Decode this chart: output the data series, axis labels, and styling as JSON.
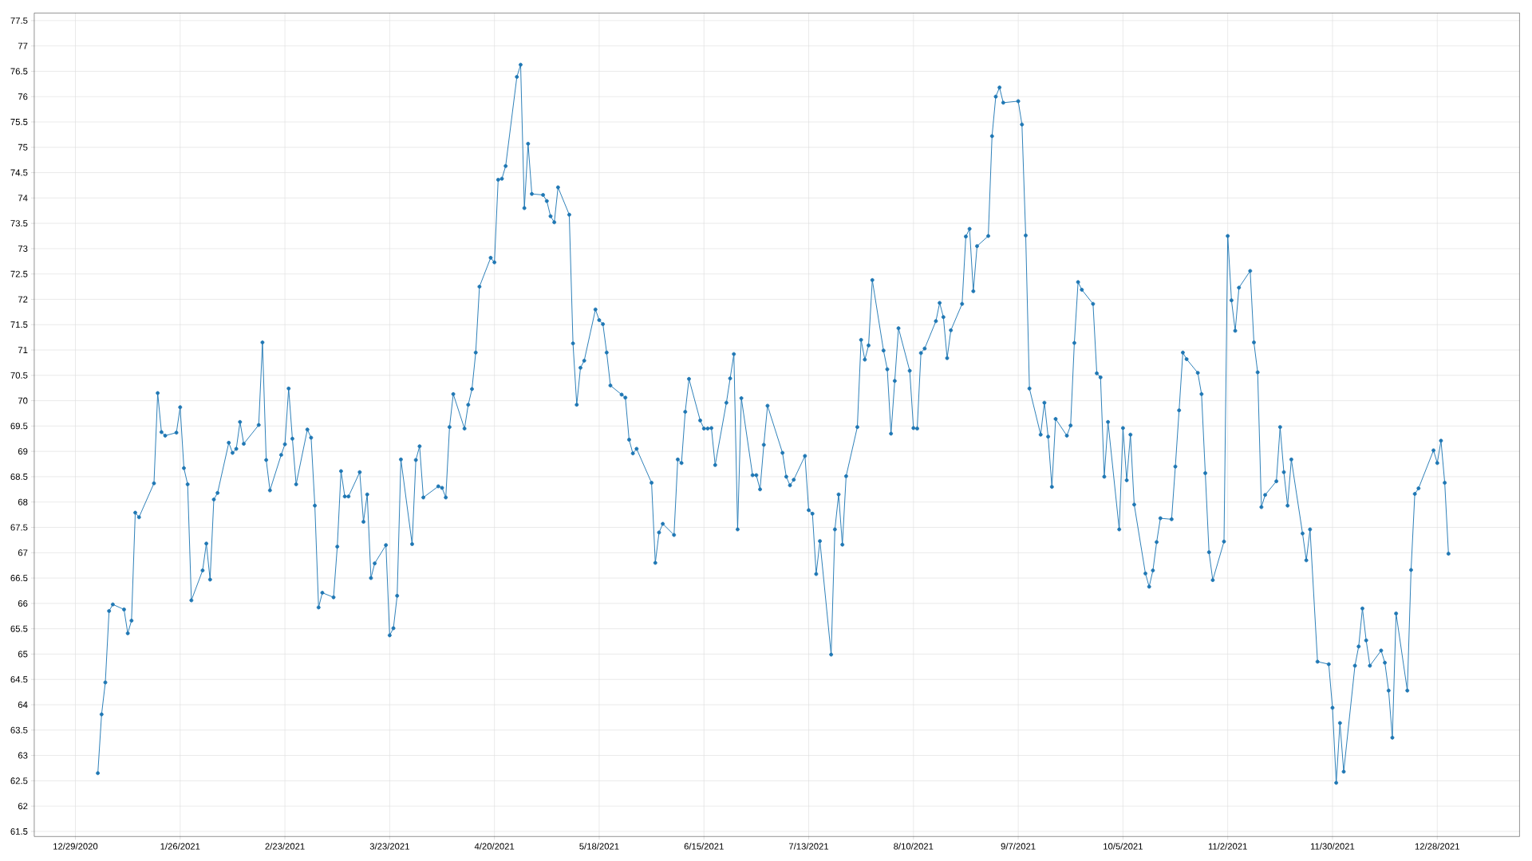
{
  "chart_data": {
    "type": "line",
    "color": "#1f77b4",
    "marker": "circle",
    "line_style": "solid",
    "grid": true,
    "legend": false,
    "xlim": [
      "2020-12-18",
      "2022-01-19"
    ],
    "ylim": [
      61.4,
      77.65
    ],
    "xticks": [
      {
        "value": "2020-12-29",
        "label": "12/29/2020"
      },
      {
        "value": "2021-01-26",
        "label": "1/26/2021"
      },
      {
        "value": "2021-02-23",
        "label": "2/23/2021"
      },
      {
        "value": "2021-03-23",
        "label": "3/23/2021"
      },
      {
        "value": "2021-04-20",
        "label": "4/20/2021"
      },
      {
        "value": "2021-05-18",
        "label": "5/18/2021"
      },
      {
        "value": "2021-06-15",
        "label": "6/15/2021"
      },
      {
        "value": "2021-07-13",
        "label": "7/13/2021"
      },
      {
        "value": "2021-08-10",
        "label": "8/10/2021"
      },
      {
        "value": "2021-09-07",
        "label": "9/7/2021"
      },
      {
        "value": "2021-10-05",
        "label": "10/5/2021"
      },
      {
        "value": "2021-11-02",
        "label": "11/2/2021"
      },
      {
        "value": "2021-11-30",
        "label": "11/30/2021"
      },
      {
        "value": "2021-12-28",
        "label": "12/28/2021"
      }
    ],
    "yticks": [
      61.5,
      62,
      62.5,
      63,
      63.5,
      64,
      64.5,
      65,
      65.5,
      66,
      66.5,
      67,
      67.5,
      68,
      68.5,
      69,
      69.5,
      70,
      70.5,
      71,
      71.5,
      72,
      72.5,
      73,
      73.5,
      74,
      74.5,
      75,
      75.5,
      76,
      76.5,
      77,
      77.5
    ],
    "x": [
      "2021-01-04",
      "2021-01-05",
      "2021-01-06",
      "2021-01-07",
      "2021-01-08",
      "2021-01-11",
      "2021-01-12",
      "2021-01-13",
      "2021-01-14",
      "2021-01-15",
      "2021-01-19",
      "2021-01-20",
      "2021-01-21",
      "2021-01-22",
      "2021-01-25",
      "2021-01-26",
      "2021-01-27",
      "2021-01-28",
      "2021-01-29",
      "2021-02-01",
      "2021-02-02",
      "2021-02-03",
      "2021-02-04",
      "2021-02-05",
      "2021-02-08",
      "2021-02-09",
      "2021-02-10",
      "2021-02-11",
      "2021-02-12",
      "2021-02-16",
      "2021-02-17",
      "2021-02-18",
      "2021-02-19",
      "2021-02-22",
      "2021-02-23",
      "2021-02-24",
      "2021-02-25",
      "2021-02-26",
      "2021-03-01",
      "2021-03-02",
      "2021-03-03",
      "2021-03-04",
      "2021-03-05",
      "2021-03-08",
      "2021-03-09",
      "2021-03-10",
      "2021-03-11",
      "2021-03-12",
      "2021-03-15",
      "2021-03-16",
      "2021-03-17",
      "2021-03-18",
      "2021-03-19",
      "2021-03-22",
      "2021-03-23",
      "2021-03-24",
      "2021-03-25",
      "2021-03-26",
      "2021-03-29",
      "2021-03-30",
      "2021-03-31",
      "2021-04-01",
      "2021-04-05",
      "2021-04-06",
      "2021-04-07",
      "2021-04-08",
      "2021-04-09",
      "2021-04-12",
      "2021-04-13",
      "2021-04-14",
      "2021-04-15",
      "2021-04-16",
      "2021-04-19",
      "2021-04-20",
      "2021-04-21",
      "2021-04-22",
      "2021-04-23",
      "2021-04-26",
      "2021-04-27",
      "2021-04-28",
      "2021-04-29",
      "2021-04-30",
      "2021-05-03",
      "2021-05-04",
      "2021-05-05",
      "2021-05-06",
      "2021-05-07",
      "2021-05-10",
      "2021-05-11",
      "2021-05-12",
      "2021-05-13",
      "2021-05-14",
      "2021-05-17",
      "2021-05-18",
      "2021-05-19",
      "2021-05-20",
      "2021-05-21",
      "2021-05-24",
      "2021-05-25",
      "2021-05-26",
      "2021-05-27",
      "2021-05-28",
      "2021-06-01",
      "2021-06-02",
      "2021-06-03",
      "2021-06-04",
      "2021-06-07",
      "2021-06-08",
      "2021-06-09",
      "2021-06-10",
      "2021-06-11",
      "2021-06-14",
      "2021-06-15",
      "2021-06-16",
      "2021-06-17",
      "2021-06-18",
      "2021-06-21",
      "2021-06-22",
      "2021-06-23",
      "2021-06-24",
      "2021-06-25",
      "2021-06-28",
      "2021-06-29",
      "2021-06-30",
      "2021-07-01",
      "2021-07-02",
      "2021-07-06",
      "2021-07-07",
      "2021-07-08",
      "2021-07-09",
      "2021-07-12",
      "2021-07-13",
      "2021-07-14",
      "2021-07-15",
      "2021-07-16",
      "2021-07-19",
      "2021-07-20",
      "2021-07-21",
      "2021-07-22",
      "2021-07-23",
      "2021-07-26",
      "2021-07-27",
      "2021-07-28",
      "2021-07-29",
      "2021-07-30",
      "2021-08-02",
      "2021-08-03",
      "2021-08-04",
      "2021-08-05",
      "2021-08-06",
      "2021-08-09",
      "2021-08-10",
      "2021-08-11",
      "2021-08-12",
      "2021-08-13",
      "2021-08-16",
      "2021-08-17",
      "2021-08-18",
      "2021-08-19",
      "2021-08-20",
      "2021-08-23",
      "2021-08-24",
      "2021-08-25",
      "2021-08-26",
      "2021-08-27",
      "2021-08-30",
      "2021-08-31",
      "2021-09-01",
      "2021-09-02",
      "2021-09-03",
      "2021-09-07",
      "2021-09-08",
      "2021-09-09",
      "2021-09-10",
      "2021-09-13",
      "2021-09-14",
      "2021-09-15",
      "2021-09-16",
      "2021-09-17",
      "2021-09-20",
      "2021-09-21",
      "2021-09-22",
      "2021-09-23",
      "2021-09-24",
      "2021-09-27",
      "2021-09-28",
      "2021-09-29",
      "2021-09-30",
      "2021-10-01",
      "2021-10-04",
      "2021-10-05",
      "2021-10-06",
      "2021-10-07",
      "2021-10-08",
      "2021-10-11",
      "2021-10-12",
      "2021-10-13",
      "2021-10-14",
      "2021-10-15",
      "2021-10-18",
      "2021-10-19",
      "2021-10-20",
      "2021-10-21",
      "2021-10-22",
      "2021-10-25",
      "2021-10-26",
      "2021-10-27",
      "2021-10-28",
      "2021-10-29",
      "2021-11-01",
      "2021-11-02",
      "2021-11-03",
      "2021-11-04",
      "2021-11-05",
      "2021-11-08",
      "2021-11-09",
      "2021-11-10",
      "2021-11-11",
      "2021-11-12",
      "2021-11-15",
      "2021-11-16",
      "2021-11-17",
      "2021-11-18",
      "2021-11-19",
      "2021-11-22",
      "2021-11-23",
      "2021-11-24",
      "2021-11-26",
      "2021-11-29",
      "2021-11-30",
      "2021-12-01",
      "2021-12-02",
      "2021-12-03",
      "2021-12-06",
      "2021-12-07",
      "2021-12-08",
      "2021-12-09",
      "2021-12-10",
      "2021-12-13",
      "2021-12-14",
      "2021-12-15",
      "2021-12-16",
      "2021-12-17",
      "2021-12-20",
      "2021-12-21",
      "2021-12-22",
      "2021-12-23",
      "2021-12-27",
      "2021-12-28",
      "2021-12-29",
      "2021-12-30",
      "2021-12-31"
    ],
    "values": [
      62.65,
      63.81,
      64.44,
      65.85,
      65.98,
      65.88,
      65.41,
      65.66,
      67.79,
      67.7,
      68.37,
      70.15,
      69.38,
      69.31,
      69.37,
      69.87,
      68.67,
      68.35,
      66.06,
      66.65,
      67.18,
      66.47,
      68.05,
      68.18,
      69.17,
      68.97,
      69.05,
      69.58,
      69.15,
      69.52,
      71.15,
      68.83,
      68.23,
      68.93,
      69.14,
      70.24,
      69.25,
      68.35,
      69.43,
      69.27,
      67.93,
      65.92,
      66.21,
      66.12,
      67.12,
      68.61,
      68.11,
      68.11,
      68.59,
      67.61,
      68.15,
      66.5,
      66.79,
      67.15,
      65.37,
      65.51,
      66.15,
      68.84,
      67.17,
      68.83,
      69.1,
      68.09,
      68.31,
      68.28,
      68.09,
      69.48,
      70.13,
      69.45,
      69.92,
      70.23,
      70.95,
      72.25,
      72.82,
      72.73,
      74.36,
      74.38,
      74.63,
      76.39,
      76.63,
      73.8,
      75.07,
      74.08,
      74.06,
      73.94,
      73.64,
      73.52,
      74.21,
      73.67,
      71.13,
      69.92,
      70.65,
      70.79,
      71.8,
      71.59,
      71.51,
      70.95,
      70.3,
      70.12,
      70.06,
      69.23,
      68.96,
      69.05,
      68.38,
      66.8,
      67.4,
      67.57,
      67.35,
      68.84,
      68.77,
      69.78,
      70.43,
      69.61,
      69.45,
      69.45,
      69.46,
      68.73,
      69.96,
      70.44,
      70.92,
      67.46,
      70.05,
      68.53,
      68.53,
      68.25,
      69.13,
      69.9,
      68.97,
      68.5,
      68.33,
      68.44,
      68.91,
      67.84,
      67.77,
      66.58,
      67.23,
      64.99,
      67.46,
      68.15,
      67.16,
      68.51,
      69.48,
      71.2,
      70.81,
      71.09,
      72.38,
      70.99,
      70.62,
      69.35,
      70.39,
      71.43,
      70.59,
      69.46,
      69.45,
      70.94,
      71.03,
      71.57,
      71.93,
      71.65,
      70.84,
      71.39,
      71.91,
      73.24,
      73.39,
      72.16,
      73.05,
      73.25,
      75.22,
      76.0,
      76.18,
      75.88,
      75.91,
      75.45,
      73.26,
      70.24,
      69.33,
      69.96,
      69.29,
      68.3,
      69.64,
      69.31,
      69.51,
      71.14,
      72.34,
      72.19,
      71.91,
      70.54,
      70.46,
      68.5,
      69.58,
      67.46,
      69.46,
      68.43,
      69.33,
      67.95,
      66.59,
      66.33,
      66.65,
      67.21,
      67.68,
      67.66,
      68.7,
      69.81,
      70.95,
      70.82,
      70.55,
      70.13,
      68.57,
      67.01,
      66.46,
      67.22,
      73.25,
      71.98,
      71.38,
      72.23,
      72.56,
      71.15,
      70.56,
      67.9,
      68.14,
      68.41,
      69.48,
      68.59,
      67.93,
      68.84,
      67.38,
      66.85,
      67.46,
      64.85,
      64.8,
      63.94,
      62.46,
      63.64,
      62.68,
      64.77,
      65.15,
      65.9,
      65.27,
      64.77,
      65.07,
      64.83,
      64.28,
      63.35,
      65.8,
      64.28,
      66.66,
      68.16,
      68.27,
      69.02,
      68.77,
      69.21,
      68.38,
      66.98
    ]
  }
}
